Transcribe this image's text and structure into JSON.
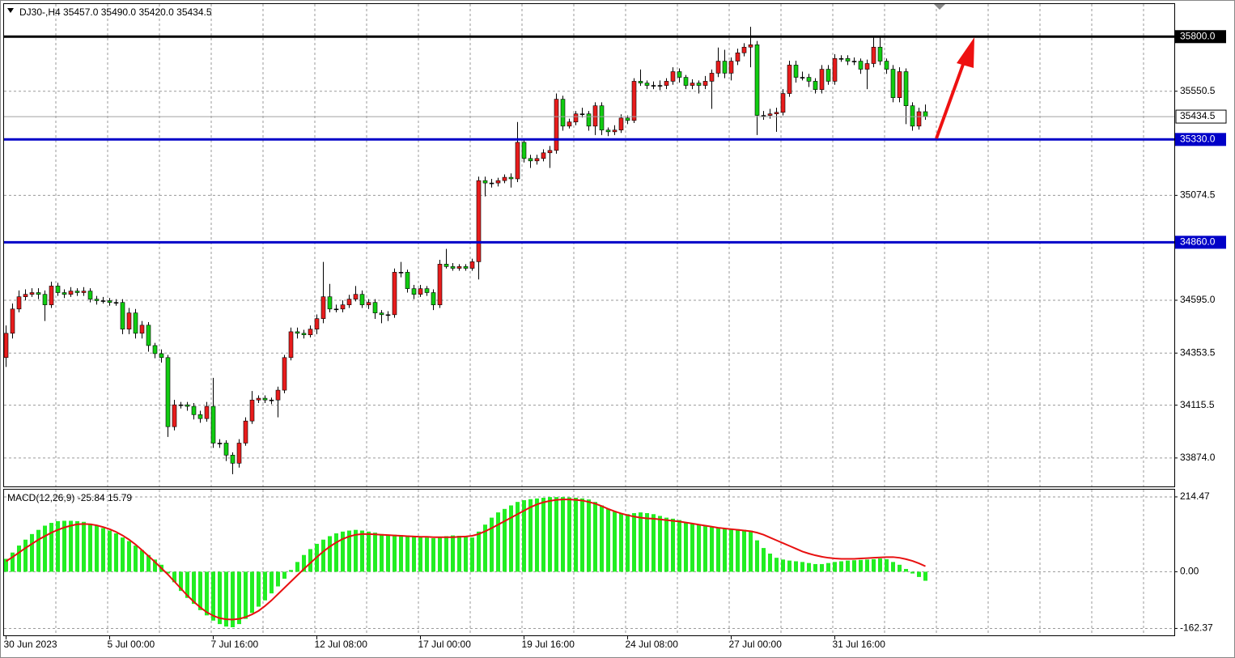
{
  "chart_data": [
    {
      "type": "candlestick",
      "title": "DJ30-,H4  35457.0 35490.0 35420.0 35434.5",
      "up_color": "#e81c1c",
      "down_color": "#11cc11",
      "ylim": [
        33744,
        35949
      ],
      "yticks": [
        35550.5,
        35074.5,
        {
          "value": 34595,
          "label": "34595.0"
        },
        34353.5,
        34115.5,
        {
          "value": 33874,
          "label": "33874.0"
        }
      ],
      "grid": true,
      "xticks": [
        {
          "value": 0,
          "label": "30 Jun 2023"
        },
        {
          "value": 16,
          "label": "5 Jul 00:00"
        },
        {
          "value": 32,
          "label": "7 Jul 16:00"
        },
        {
          "value": 48,
          "label": "12 Jul 08:00"
        },
        {
          "value": 64,
          "label": "17 Jul 00:00"
        },
        {
          "value": 80,
          "label": "19 Jul 16:00"
        },
        {
          "value": 96,
          "label": "24 Jul 08:00"
        },
        {
          "value": 112,
          "label": "27 Jul 00:00"
        },
        {
          "value": 128,
          "label": "31 Jul 16:00"
        }
      ],
      "levels": [
        {
          "value": 35800,
          "label": "35800.0",
          "color": "#000000"
        },
        {
          "value": 35330,
          "label": "35330.0",
          "color": "#0000c8"
        },
        {
          "value": 34860,
          "label": "34860.0",
          "color": "#0000c8"
        }
      ],
      "current_price": 35434.5,
      "candles": [
        [
          34333,
          34480,
          34290,
          34444
        ],
        [
          34444,
          34580,
          34420,
          34555
        ],
        [
          34555,
          34640,
          34540,
          34611
        ],
        [
          34611,
          34645,
          34595,
          34622
        ],
        [
          34622,
          34650,
          34610,
          34630
        ],
        [
          34630,
          34650,
          34600,
          34622
        ],
        [
          34622,
          34640,
          34500,
          34574
        ],
        [
          34574,
          34680,
          34560,
          34660
        ],
        [
          34660,
          34675,
          34615,
          34630
        ],
        [
          34630,
          34645,
          34605,
          34622
        ],
        [
          34622,
          34655,
          34610,
          34637
        ],
        [
          34637,
          34650,
          34615,
          34630
        ],
        [
          34630,
          34655,
          34615,
          34637
        ],
        [
          34637,
          34650,
          34585,
          34600
        ],
        [
          34600,
          34615,
          34575,
          34593
        ],
        [
          34593,
          34610,
          34580,
          34593
        ],
        [
          34593,
          34605,
          34570,
          34585
        ],
        [
          34585,
          34600,
          34570,
          34585
        ],
        [
          34585,
          34600,
          34440,
          34463
        ],
        [
          34463,
          34560,
          34440,
          34537
        ],
        [
          34537,
          34555,
          34420,
          34444
        ],
        [
          34444,
          34500,
          34420,
          34481
        ],
        [
          34481,
          34495,
          34360,
          34388
        ],
        [
          34388,
          34400,
          34330,
          34351
        ],
        [
          34351,
          34370,
          34310,
          34333
        ],
        [
          34333,
          34345,
          33970,
          34017
        ],
        [
          34017,
          34140,
          34000,
          34117
        ],
        [
          34117,
          34130,
          34100,
          34117
        ],
        [
          34117,
          34130,
          34090,
          34110
        ],
        [
          34110,
          34125,
          34050,
          34072
        ],
        [
          34072,
          34090,
          34035,
          34054
        ],
        [
          34054,
          34130,
          34040,
          34110
        ],
        [
          34110,
          34240,
          33920,
          33942
        ],
        [
          33942,
          33960,
          33920,
          33942
        ],
        [
          33942,
          33955,
          33860,
          33887
        ],
        [
          33887,
          33900,
          33800,
          33850
        ],
        [
          33850,
          33960,
          33830,
          33942
        ],
        [
          33942,
          34060,
          33930,
          34043
        ],
        [
          34043,
          34180,
          34030,
          34139
        ],
        [
          34139,
          34160,
          34125,
          34147
        ],
        [
          34147,
          34160,
          34125,
          34139
        ],
        [
          34139,
          34150,
          34120,
          34139
        ],
        [
          34139,
          34200,
          34060,
          34184
        ],
        [
          34184,
          34345,
          34170,
          34333
        ],
        [
          34333,
          34470,
          34320,
          34451
        ],
        [
          34451,
          34470,
          34420,
          34444
        ],
        [
          34444,
          34460,
          34420,
          34437
        ],
        [
          34437,
          34480,
          34425,
          34463
        ],
        [
          34463,
          34530,
          34440,
          34511
        ],
        [
          34511,
          34770,
          34490,
          34611
        ],
        [
          34611,
          34670,
          34540,
          34555
        ],
        [
          34555,
          34575,
          34540,
          34555
        ],
        [
          34555,
          34595,
          34540,
          34574
        ],
        [
          34574,
          34620,
          34560,
          34600
        ],
        [
          34600,
          34660,
          34590,
          34622
        ],
        [
          34622,
          34640,
          34560,
          34574
        ],
        [
          34574,
          34600,
          34555,
          34585
        ],
        [
          34585,
          34600,
          34510,
          34537
        ],
        [
          34537,
          34550,
          34490,
          34529
        ],
        [
          34529,
          34545,
          34500,
          34529
        ],
        [
          34529,
          34740,
          34515,
          34723
        ],
        [
          34723,
          34770,
          34700,
          34723
        ],
        [
          34723,
          34735,
          34630,
          34648
        ],
        [
          34648,
          34665,
          34600,
          34622
        ],
        [
          34622,
          34665,
          34610,
          34648
        ],
        [
          34648,
          34660,
          34615,
          34630
        ],
        [
          34630,
          34645,
          34550,
          34574
        ],
        [
          34574,
          34780,
          34560,
          34760
        ],
        [
          34760,
          34830,
          34740,
          34749
        ],
        [
          34749,
          34765,
          34730,
          34741
        ],
        [
          34741,
          34760,
          34730,
          34749
        ],
        [
          34749,
          34760,
          34730,
          34741
        ],
        [
          34741,
          34785,
          34730,
          34771
        ],
        [
          34771,
          35160,
          34690,
          35142
        ],
        [
          35142,
          35160,
          35070,
          35131
        ],
        [
          35131,
          35150,
          35110,
          35131
        ],
        [
          35131,
          35155,
          35115,
          35142
        ],
        [
          35142,
          35170,
          35130,
          35157
        ],
        [
          35157,
          35175,
          35110,
          35150
        ],
        [
          35150,
          35410,
          35135,
          35317
        ],
        [
          35317,
          35335,
          35225,
          35243
        ],
        [
          35243,
          35260,
          35200,
          35232
        ],
        [
          35232,
          35260,
          35215,
          35243
        ],
        [
          35243,
          35285,
          35230,
          35269
        ],
        [
          35269,
          35300,
          35200,
          35280
        ],
        [
          35280,
          35540,
          35265,
          35514
        ],
        [
          35514,
          35530,
          35370,
          35391
        ],
        [
          35391,
          35425,
          35380,
          35410
        ],
        [
          35410,
          35460,
          35395,
          35447
        ],
        [
          35447,
          35475,
          35430,
          35447
        ],
        [
          35447,
          35460,
          35370,
          35391
        ],
        [
          35391,
          35500,
          35350,
          35484
        ],
        [
          35484,
          35500,
          35350,
          35373
        ],
        [
          35373,
          35385,
          35345,
          35365
        ],
        [
          35365,
          35395,
          35350,
          35373
        ],
        [
          35373,
          35445,
          35360,
          35428
        ],
        [
          35428,
          35440,
          35400,
          35417
        ],
        [
          35417,
          35610,
          35405,
          35596
        ],
        [
          35596,
          35650,
          35575,
          35588
        ],
        [
          35588,
          35600,
          35560,
          35577
        ],
        [
          35577,
          35595,
          35560,
          35577
        ],
        [
          35577,
          35600,
          35555,
          35577
        ],
        [
          35577,
          35610,
          35560,
          35596
        ],
        [
          35596,
          35660,
          35580,
          35640
        ],
        [
          35640,
          35655,
          35590,
          35614
        ],
        [
          35614,
          35625,
          35560,
          35577
        ],
        [
          35577,
          35605,
          35560,
          35588
        ],
        [
          35588,
          35600,
          35540,
          35577
        ],
        [
          35577,
          35620,
          35560,
          35596
        ],
        [
          35596,
          35650,
          35470,
          35633
        ],
        [
          35633,
          35750,
          35615,
          35688
        ],
        [
          35688,
          35740,
          35610,
          35633
        ],
        [
          35633,
          35705,
          35600,
          35688
        ],
        [
          35688,
          35745,
          35670,
          35726
        ],
        [
          35726,
          35770,
          35710,
          35752
        ],
        [
          35752,
          35845,
          35660,
          35763
        ],
        [
          35763,
          35780,
          35350,
          35440
        ],
        [
          35440,
          35460,
          35420,
          35440
        ],
        [
          35440,
          35470,
          35425,
          35447
        ],
        [
          35447,
          35475,
          35365,
          35454
        ],
        [
          35454,
          35560,
          35440,
          35540
        ],
        [
          35540,
          35690,
          35525,
          35670
        ],
        [
          35670,
          35690,
          35590,
          35614
        ],
        [
          35614,
          35640,
          35600,
          35614
        ],
        [
          35614,
          35630,
          35570,
          35596
        ],
        [
          35596,
          35610,
          35540,
          35558
        ],
        [
          35558,
          35670,
          35540,
          35651
        ],
        [
          35651,
          35670,
          35580,
          35596
        ],
        [
          35596,
          35720,
          35580,
          35700
        ],
        [
          35700,
          35715,
          35685,
          35700
        ],
        [
          35700,
          35715,
          35670,
          35688
        ],
        [
          35688,
          35705,
          35670,
          35688
        ],
        [
          35688,
          35700,
          35630,
          35651
        ],
        [
          35651,
          35695,
          35560,
          35677
        ],
        [
          35677,
          35800,
          35660,
          35752
        ],
        [
          35752,
          35800,
          35670,
          35688
        ],
        [
          35688,
          35700,
          35630,
          35651
        ],
        [
          35651,
          35670,
          35500,
          35521
        ],
        [
          35521,
          35660,
          35500,
          35640
        ],
        [
          35640,
          35655,
          35400,
          35484
        ],
        [
          35484,
          35500,
          35370,
          35391
        ],
        [
          35391,
          35475,
          35375,
          35457
        ],
        [
          35457,
          35490,
          35420,
          35434.5
        ]
      ]
    },
    {
      "type": "macd",
      "title": "MACD(12,26,9) -25.84 15.79",
      "ylim": [
        -182.2,
        235.2
      ],
      "yticks": [
        214.47,
        {
          "value": 0,
          "label": "0.00"
        },
        -162.37
      ],
      "histogram": {
        "color": "#22ee22",
        "values": [
          37,
          55,
          75,
          92,
          108,
          120,
          132,
          140,
          145,
          146,
          146,
          145,
          143,
          138,
          132,
          125,
          118,
          110,
          98,
          88,
          75,
          62,
          48,
          35,
          20,
          -5,
          -30,
          -55,
          -75,
          -92,
          -110,
          -125,
          -140,
          -150,
          -157,
          -159,
          -150,
          -135,
          -118,
          -100,
          -82,
          -62,
          -42,
          -20,
          5,
          28,
          48,
          65,
          80,
          92,
          102,
          110,
          115,
          118,
          120,
          118,
          115,
          112,
          108,
          104,
          106,
          105,
          104,
          102,
          100,
          98,
          96,
          100,
          102,
          104,
          103,
          100,
          98,
          115,
          135,
          155,
          170,
          180,
          190,
          200,
          205,
          208,
          210,
          212,
          214,
          214,
          214,
          213,
          212,
          210,
          207,
          200,
          190,
          180,
          172,
          168,
          165,
          168,
          170,
          168,
          165,
          160,
          155,
          152,
          148,
          142,
          138,
          135,
          132,
          128,
          126,
          124,
          123,
          122,
          120,
          118,
          90,
          68,
          52,
          40,
          35,
          32,
          30,
          28,
          25,
          22,
          22,
          25,
          28,
          30,
          32,
          33,
          34,
          35,
          36,
          38,
          36,
          28,
          20,
          8,
          -5,
          -15,
          -25.84
        ]
      },
      "signal": {
        "color": "#e81010",
        "values": [
          30,
          42,
          55,
          68,
          80,
          92,
          102,
          112,
          120,
          127,
          132,
          136,
          137,
          136,
          133,
          128,
          122,
          114,
          104,
          92,
          78,
          62,
          45,
          28,
          10,
          -8,
          -28,
          -48,
          -68,
          -86,
          -102,
          -116,
          -126,
          -133,
          -136,
          -137,
          -135,
          -130,
          -122,
          -112,
          -98,
          -82,
          -64,
          -46,
          -28,
          -10,
          8,
          25,
          42,
          58,
          72,
          84,
          94,
          101,
          106,
          108,
          108,
          107,
          106,
          105,
          104,
          103,
          102,
          101,
          100,
          100,
          99,
          99,
          99,
          99,
          100,
          101,
          103,
          108,
          116,
          125,
          135,
          145,
          155,
          165,
          175,
          185,
          193,
          199,
          203,
          206,
          207,
          207,
          206,
          204,
          200,
          195,
          188,
          180,
          173,
          167,
          162,
          158,
          155,
          153,
          152,
          150,
          148,
          146,
          144,
          141,
          138,
          135,
          132,
          129,
          126,
          124,
          122,
          120,
          118,
          116,
          112,
          106,
          98,
          90,
          82,
          74,
          66,
          58,
          52,
          47,
          43,
          40,
          38,
          37,
          37,
          37,
          38,
          39,
          40,
          41,
          42,
          42,
          40,
          36,
          31,
          24,
          15.79
        ]
      }
    }
  ]
}
